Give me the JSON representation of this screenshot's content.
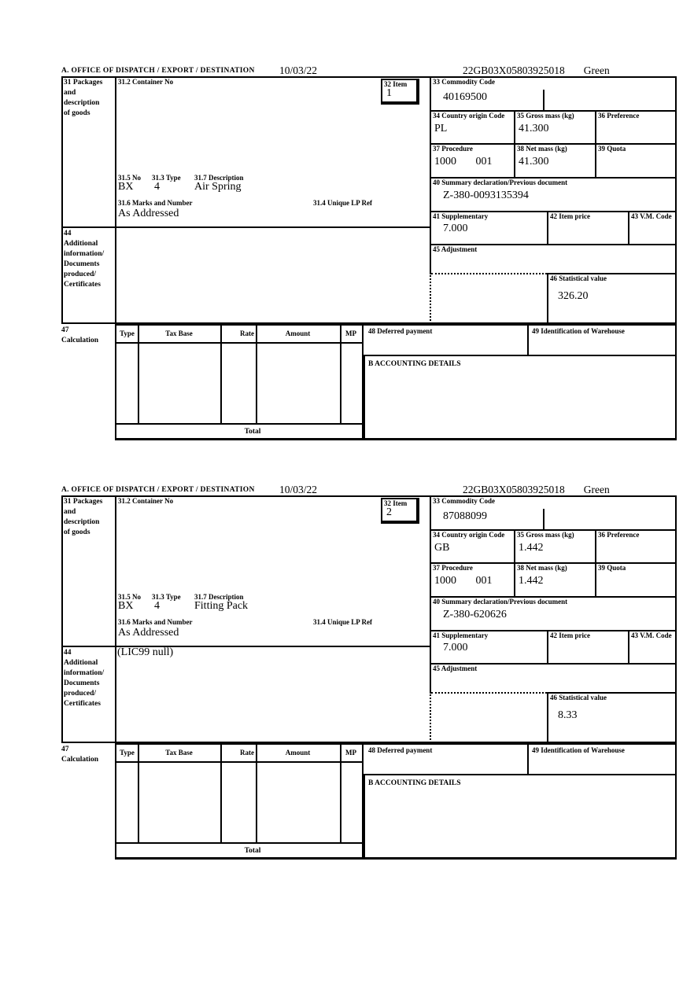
{
  "page": {
    "header": {
      "office_label": "A.  OFFICE OF DISPATCH / EXPORT / DESTINATION",
      "date": "10/03/22",
      "reference": "22GB03X05803925018",
      "status": "Green"
    },
    "labels": {
      "box31": "31 Packages\nand\ndescription\nof goods",
      "box31_2": "31.2 Container No",
      "box32": "32 Item",
      "box33": "33 Commodity Code",
      "box34": "34 Country origin Code",
      "box35": "35 Gross mass (kg)",
      "box36": "36 Preference",
      "box37": "37 Procedure",
      "box38": "38 Net mass (kg)",
      "box39": "39 Quota",
      "box40": "40 Summary declaration/Previous document",
      "box41": "41 Supplementary",
      "box42": "42 Item price",
      "box43": "43 V.M. Code",
      "box44": "44\nAdditional\ninformation/\nDocuments\nproduced/\nCertificates",
      "box45": "45 Adjustment",
      "box46": "46 Statistical value",
      "box47": "47\nCalculation",
      "box48": "48 Deferred payment",
      "box49": "49 Identification of Warehouse",
      "box31_5": "31.5 No",
      "box31_3": "31.3 Type",
      "box31_7": "31.7 Description",
      "box31_6": "31.6 Marks and Number",
      "box31_4": "31.4 Unique LP Ref",
      "accounting": "B ACCOUNTING DETAILS",
      "total": "Total",
      "calc_columns": [
        "Type",
        "Tax Base",
        "Rate",
        "Amount",
        "MP"
      ]
    },
    "items": [
      {
        "item_no": "1",
        "container_no": "",
        "commodity_code": "40169500",
        "country_origin": "PL",
        "gross_mass": "41.300",
        "preference": "",
        "procedure": "1000       001",
        "net_mass": "41.300",
        "quota": "",
        "previous_document": "Z-380-0093135394",
        "supplementary": "7.000",
        "item_price": "",
        "vm_code": "",
        "adjustment": "",
        "statistical_value": "326.20",
        "package_no": "BX",
        "package_type": "4",
        "description": "Air Spring",
        "marks": "As Addressed",
        "unique_lp_ref": "",
        "additional_info": ""
      },
      {
        "item_no": "2",
        "container_no": "",
        "commodity_code": "87088099",
        "country_origin": "GB",
        "gross_mass": "1.442",
        "preference": "",
        "procedure": "1000       001",
        "net_mass": "1.442",
        "quota": "",
        "previous_document": "Z-380-620626",
        "supplementary": "7.000",
        "item_price": "",
        "vm_code": "",
        "adjustment": "",
        "statistical_value": "8.33",
        "package_no": "BX",
        "package_type": "4",
        "description": "Fitting Pack",
        "marks": "As Addressed",
        "unique_lp_ref": "",
        "additional_info": "(LIC99 null)"
      }
    ]
  }
}
